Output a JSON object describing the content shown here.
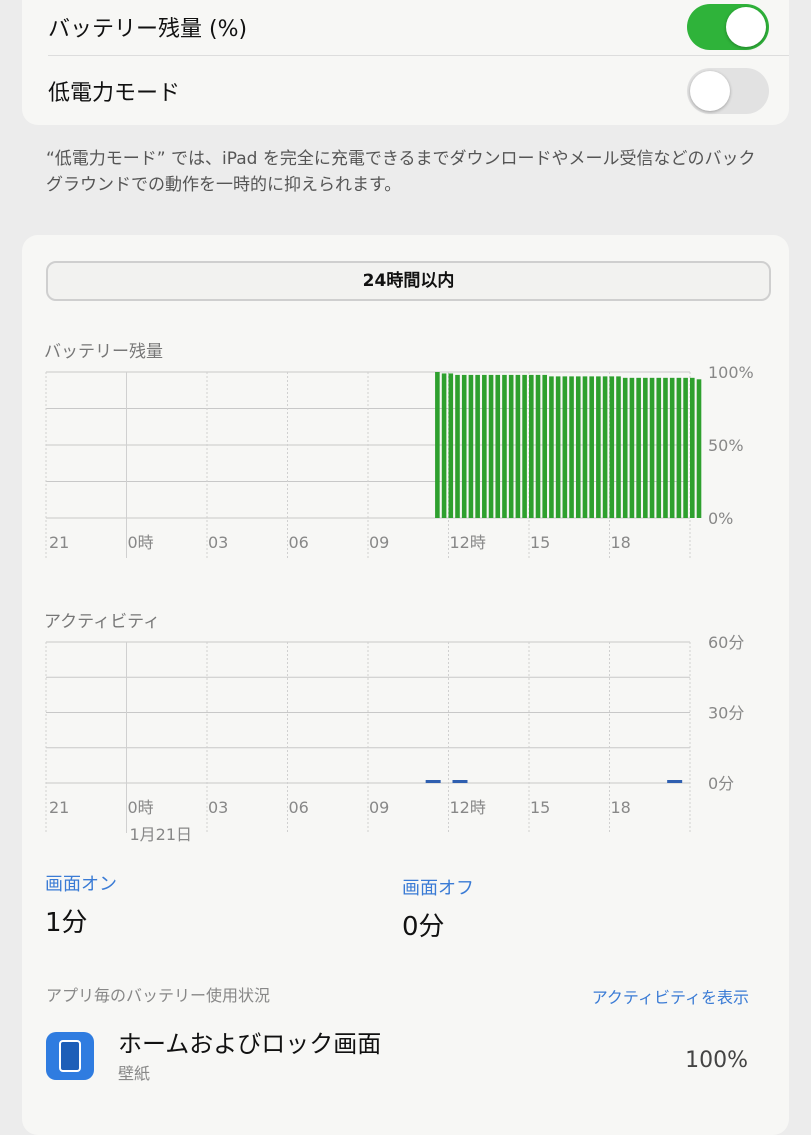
{
  "settings": {
    "battery_percentage_label": "バッテリー残量 (%)",
    "battery_percentage_on": true,
    "low_power_label": "低電力モード",
    "low_power_on": false,
    "low_power_note": "“低電力モード” では、iPad を完全に充電できるまでダウンロードやメール受信などのバックグラウンドでの動作を一時的に抑えられます。"
  },
  "segment": {
    "selected": "24時間以内"
  },
  "colors": {
    "toggle_on": "#2fb33a",
    "battery_bar": "#2ea02e",
    "activity_bar": "#2f5fb0",
    "link": "#3a7bd5"
  },
  "chart_data": [
    {
      "type": "bar",
      "title": "バッテリー残量",
      "x_ticks": [
        "21",
        "0時",
        "03",
        "06",
        "09",
        "12時",
        "15",
        "18"
      ],
      "y_ticks": [
        "100%",
        "50%",
        "0%"
      ],
      "ylim": [
        0,
        100
      ],
      "grid": true,
      "x_start": "20:00",
      "bar_interval_minutes": 15,
      "first_bar": "10:30",
      "values": [
        100,
        99,
        99,
        98,
        98,
        98,
        98,
        98,
        98,
        98,
        98,
        98,
        98,
        98,
        98,
        98,
        98,
        97,
        97,
        97,
        97,
        97,
        97,
        97,
        97,
        97,
        97,
        97,
        96,
        96,
        96,
        96,
        96,
        96,
        96,
        96,
        96,
        96,
        96,
        95
      ]
    },
    {
      "type": "bar",
      "title": "アクティビティ",
      "x_ticks": [
        "21",
        "0時",
        "03",
        "06",
        "09",
        "12時",
        "15",
        "18"
      ],
      "date_label": "1月21日",
      "y_ticks": [
        "60分",
        "30分",
        "0分"
      ],
      "ylim": [
        0,
        60
      ],
      "grid": true,
      "x_start": "20:00",
      "bars": [
        {
          "hour": "10:00",
          "minutes": 0.5
        },
        {
          "hour": "11:00",
          "minutes": 0.5
        },
        {
          "hour": "19:00",
          "minutes": 0.5
        }
      ]
    }
  ],
  "usage": {
    "screen_on_label": "画面オン",
    "screen_on_value": "1分",
    "screen_off_label": "画面オフ",
    "screen_off_value": "0分",
    "section_title": "アプリ毎のバッテリー使用状況",
    "show_activity": "アクティビティを表示",
    "apps": [
      {
        "name": "ホームおよびロック画面",
        "sub": "壁紙",
        "percent": "100%"
      }
    ]
  }
}
